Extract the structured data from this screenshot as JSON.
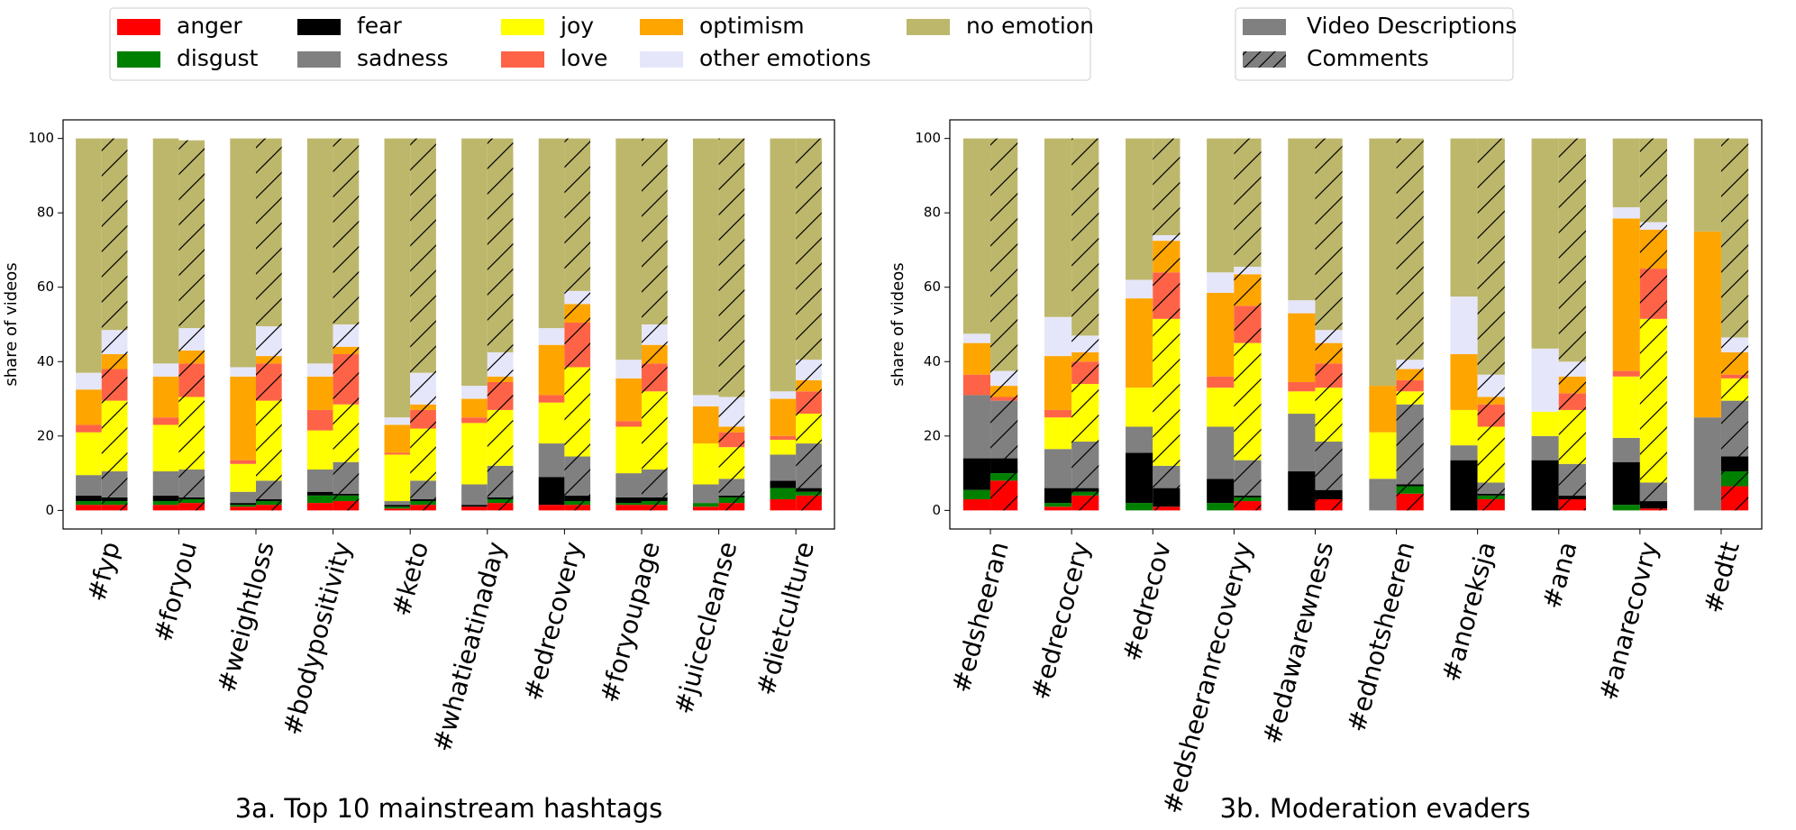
{
  "legend_emotions": {
    "items": [
      {
        "key": "anger",
        "label": "anger",
        "color": "#ff0000"
      },
      {
        "key": "disgust",
        "label": "disgust",
        "color": "#008000"
      },
      {
        "key": "fear",
        "label": "fear",
        "color": "#000000"
      },
      {
        "key": "sadness",
        "label": "sadness",
        "color": "#808080"
      },
      {
        "key": "joy",
        "label": "joy",
        "color": "#ffff00"
      },
      {
        "key": "love",
        "label": "love",
        "color": "#ff6347"
      },
      {
        "key": "optimism",
        "label": "optimism",
        "color": "#ffa500"
      },
      {
        "key": "other",
        "label": "other emotions",
        "color": "#e6e6fa"
      },
      {
        "key": "none",
        "label": "no emotion",
        "color": "#bdb76b"
      }
    ]
  },
  "legend_sources": {
    "items": [
      {
        "label": "Video Descriptions",
        "pattern": "solid",
        "color": "#808080"
      },
      {
        "label": "Comments",
        "pattern": "hatch",
        "color": "#808080"
      }
    ]
  },
  "chart_data": [
    {
      "type": "bar",
      "stacked": true,
      "title": "3a. Top 10 mainstream hashtags",
      "ylabel": "share of videos",
      "ylim": [
        0,
        100
      ],
      "yticks": [
        0,
        20,
        40,
        60,
        80,
        100
      ],
      "categories": [
        "#fyp",
        "#foryou",
        "#weightloss",
        "#bodypositivity",
        "#keto",
        "#whatieatinaday",
        "#edrecovery",
        "#foryoupage",
        "#juicecleanse",
        "#dietculture"
      ],
      "stack_order": [
        "anger",
        "disgust",
        "fear",
        "sadness",
        "joy",
        "love",
        "optimism",
        "other",
        "none"
      ],
      "series": [
        {
          "name": "Video Descriptions",
          "values": [
            [
              1.5,
              1.0,
              1.5,
              5.5,
              11.5,
              2.0,
              9.5,
              4.5,
              63.0
            ],
            [
              1.5,
              1.0,
              1.5,
              6.5,
              12.5,
              2.0,
              11.0,
              3.5,
              60.5
            ],
            [
              1.0,
              0.5,
              0.5,
              3.0,
              7.5,
              1.0,
              22.5,
              2.5,
              61.5
            ],
            [
              2.0,
              2.0,
              1.0,
              6.0,
              10.5,
              5.5,
              9.0,
              3.5,
              60.5
            ],
            [
              0.5,
              0.5,
              0.5,
              1.0,
              12.5,
              0.5,
              7.5,
              2.0,
              75.0
            ],
            [
              1.0,
              0.0,
              0.5,
              5.5,
              16.5,
              1.5,
              5.0,
              3.5,
              66.5
            ],
            [
              1.5,
              0.0,
              7.5,
              9.0,
              11.0,
              2.0,
              13.5,
              4.5,
              51.0
            ],
            [
              1.5,
              0.5,
              1.5,
              6.5,
              12.5,
              1.5,
              11.5,
              5.0,
              59.5
            ],
            [
              1.0,
              1.0,
              0.0,
              5.0,
              11.0,
              0.0,
              10.0,
              3.0,
              69.0
            ],
            [
              3.0,
              3.0,
              2.0,
              7.0,
              4.0,
              1.0,
              10.0,
              2.0,
              68.0
            ]
          ]
        },
        {
          "name": "Comments",
          "values": [
            [
              1.5,
              1.0,
              1.0,
              7.0,
              19.0,
              8.5,
              4.0,
              6.5,
              51.5
            ],
            [
              2.0,
              1.0,
              0.5,
              7.5,
              19.5,
              9.0,
              3.5,
              6.0,
              50.5
            ],
            [
              1.5,
              1.0,
              0.5,
              5.0,
              21.5,
              10.0,
              2.0,
              8.0,
              50.5
            ],
            [
              2.5,
              1.5,
              0.5,
              8.5,
              15.5,
              13.5,
              2.0,
              6.0,
              50.0
            ],
            [
              1.5,
              1.0,
              0.5,
              5.0,
              14.0,
              5.0,
              1.5,
              8.5,
              63.0
            ],
            [
              2.0,
              1.0,
              0.5,
              8.5,
              15.0,
              7.5,
              1.5,
              6.5,
              57.5
            ],
            [
              1.5,
              1.0,
              1.5,
              10.5,
              24.0,
              12.0,
              5.0,
              3.5,
              41.0
            ],
            [
              1.5,
              1.0,
              1.0,
              7.5,
              21.0,
              7.5,
              5.0,
              5.5,
              50.0
            ],
            [
              2.0,
              1.5,
              0.5,
              4.5,
              8.5,
              4.0,
              1.5,
              8.0,
              69.5
            ],
            [
              4.0,
              1.0,
              1.0,
              12.0,
              8.0,
              6.0,
              3.0,
              5.5,
              59.5
            ]
          ]
        }
      ]
    },
    {
      "type": "bar",
      "stacked": true,
      "title": "3b. Moderation evaders",
      "ylabel": "share of videos",
      "ylim": [
        0,
        100
      ],
      "yticks": [
        0,
        20,
        40,
        60,
        80,
        100
      ],
      "categories": [
        "#edsheeran",
        "#edrecocery",
        "#edrecov",
        "#edsheeranrecoveryy",
        "#edawarewness",
        "#ednotsheeren",
        "#anoreksja",
        "#ana",
        "#anarecovry",
        "#edtt"
      ],
      "stack_order": [
        "anger",
        "disgust",
        "fear",
        "sadness",
        "joy",
        "love",
        "optimism",
        "other",
        "none"
      ],
      "series": [
        {
          "name": "Video Descriptions",
          "values": [
            [
              3.0,
              2.5,
              8.5,
              17.0,
              0.0,
              5.5,
              8.5,
              2.5,
              52.5
            ],
            [
              1.0,
              1.0,
              4.0,
              10.5,
              8.5,
              2.0,
              14.5,
              10.5,
              48.0
            ],
            [
              0.0,
              2.0,
              13.5,
              7.0,
              10.5,
              0.0,
              24.0,
              5.0,
              38.0
            ],
            [
              0.0,
              2.0,
              6.5,
              14.0,
              10.5,
              3.0,
              22.5,
              5.5,
              36.0
            ],
            [
              0.0,
              0.0,
              10.5,
              15.5,
              6.0,
              2.5,
              18.5,
              3.5,
              43.5
            ],
            [
              0.0,
              0.0,
              0.0,
              8.5,
              12.5,
              0.0,
              12.5,
              0.0,
              66.5
            ],
            [
              0.0,
              0.0,
              13.5,
              4.0,
              9.5,
              0.0,
              15.0,
              15.5,
              42.5
            ],
            [
              0.0,
              0.0,
              13.5,
              6.5,
              6.5,
              0.0,
              0.0,
              17.0,
              56.5
            ],
            [
              0.0,
              1.5,
              11.5,
              6.5,
              16.5,
              1.5,
              41.0,
              3.0,
              18.5
            ],
            [
              0.0,
              0.0,
              0.0,
              25.0,
              0.0,
              0.0,
              50.0,
              0.0,
              25.0
            ]
          ]
        },
        {
          "name": "Comments",
          "values": [
            [
              8.0,
              2.0,
              4.0,
              15.5,
              0.0,
              1.0,
              3.0,
              4.0,
              62.5
            ],
            [
              4.0,
              1.0,
              1.0,
              12.5,
              15.5,
              6.0,
              2.5,
              4.5,
              53.0
            ],
            [
              1.0,
              0.0,
              5.0,
              6.0,
              39.5,
              12.5,
              8.5,
              1.5,
              26.0
            ],
            [
              2.5,
              1.0,
              0.5,
              9.5,
              31.5,
              10.0,
              8.5,
              2.0,
              34.5
            ],
            [
              3.0,
              0.0,
              2.5,
              13.0,
              14.5,
              6.5,
              5.5,
              3.5,
              51.5
            ],
            [
              4.5,
              2.0,
              0.5,
              21.5,
              3.5,
              3.0,
              3.0,
              2.5,
              59.5
            ],
            [
              3.0,
              1.0,
              0.5,
              3.0,
              15.0,
              6.0,
              2.0,
              6.0,
              63.5
            ],
            [
              3.0,
              0.0,
              1.0,
              8.5,
              14.5,
              4.5,
              4.5,
              4.0,
              60.0
            ],
            [
              0.5,
              0.0,
              2.0,
              5.0,
              44.0,
              13.5,
              10.5,
              2.0,
              22.5
            ],
            [
              6.5,
              4.0,
              4.0,
              15.0,
              6.0,
              1.0,
              6.0,
              4.0,
              53.5
            ]
          ]
        }
      ]
    }
  ]
}
